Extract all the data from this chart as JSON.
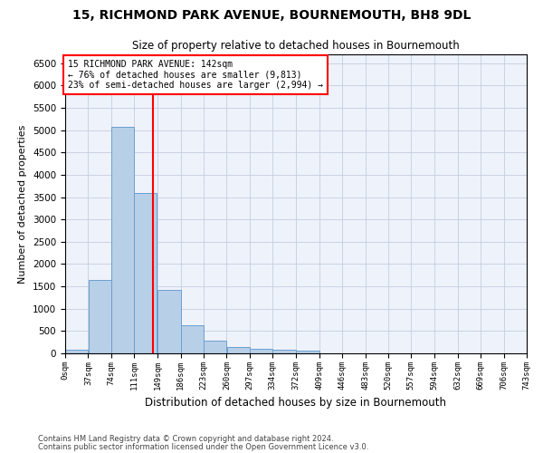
{
  "title1": "15, RICHMOND PARK AVENUE, BOURNEMOUTH, BH8 9DL",
  "title2": "Size of property relative to detached houses in Bournemouth",
  "xlabel": "Distribution of detached houses by size in Bournemouth",
  "ylabel": "Number of detached properties",
  "bar_values": [
    75,
    1650,
    5075,
    3600,
    1420,
    620,
    285,
    150,
    110,
    75,
    55,
    0,
    0,
    0,
    0,
    0,
    0,
    0,
    0
  ],
  "bar_left_edges": [
    0,
    37,
    74,
    111,
    149,
    186,
    223,
    260,
    297,
    334,
    372,
    409,
    446,
    483,
    520,
    557,
    594,
    632,
    669
  ],
  "bin_width": 37,
  "x_tick_labels": [
    "0sqm",
    "37sqm",
    "74sqm",
    "111sqm",
    "149sqm",
    "186sqm",
    "223sqm",
    "260sqm",
    "297sqm",
    "334sqm",
    "372sqm",
    "409sqm",
    "446sqm",
    "483sqm",
    "520sqm",
    "557sqm",
    "594sqm",
    "632sqm",
    "669sqm",
    "706sqm",
    "743sqm"
  ],
  "x_tick_positions": [
    0,
    37,
    74,
    111,
    149,
    186,
    223,
    260,
    297,
    334,
    372,
    409,
    446,
    483,
    520,
    557,
    594,
    632,
    669,
    706,
    743
  ],
  "bar_color": "#b8cfe8",
  "bar_edge_color": "#6aa0d0",
  "red_line_x": 142,
  "annotation_box_text": "15 RICHMOND PARK AVENUE: 142sqm\n← 76% of detached houses are smaller (9,813)\n23% of semi-detached houses are larger (2,994) →",
  "ylim": [
    0,
    6700
  ],
  "yticks": [
    0,
    500,
    1000,
    1500,
    2000,
    2500,
    3000,
    3500,
    4000,
    4500,
    5000,
    5500,
    6000,
    6500
  ],
  "footer1": "Contains HM Land Registry data © Crown copyright and database right 2024.",
  "footer2": "Contains public sector information licensed under the Open Government Licence v3.0.",
  "bg_color": "#eef2fa",
  "grid_color": "#c5cde0"
}
